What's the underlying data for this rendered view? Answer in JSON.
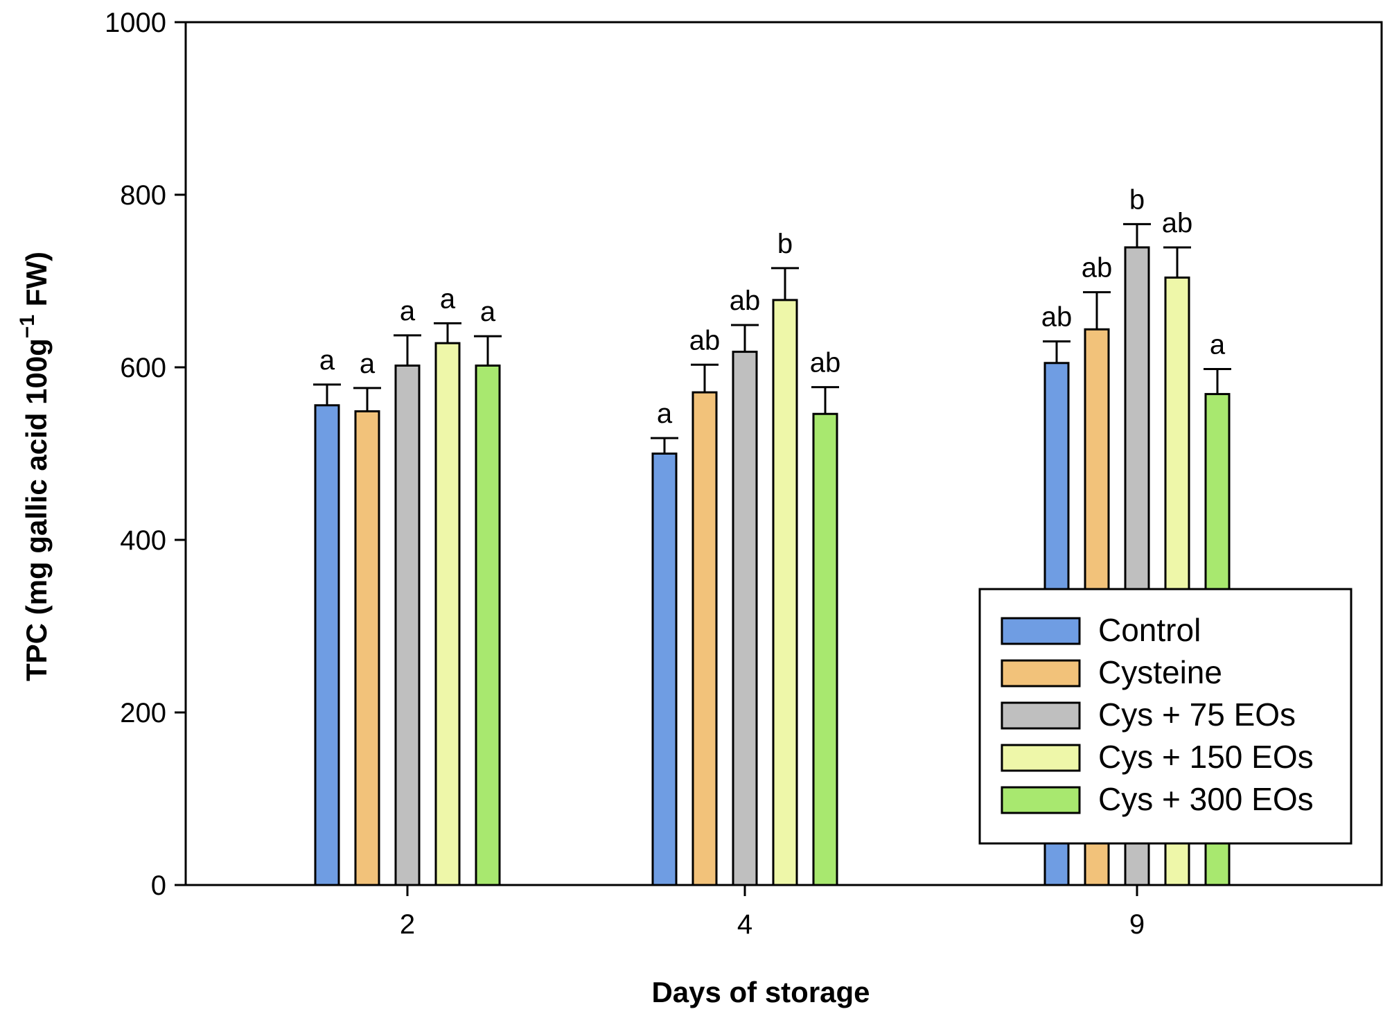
{
  "chart_data": {
    "type": "bar",
    "title": "",
    "xlabel": "Days of storage",
    "ylabel": {
      "base": "TPC (mg gallic acid 100g",
      "superscript": "−1",
      "suffix": " FW)"
    },
    "ylim": [
      0,
      1000
    ],
    "yticks": [
      0,
      200,
      400,
      600,
      800,
      1000
    ],
    "categories": [
      "2",
      "4",
      "9"
    ],
    "legend_position": "bottom-right",
    "series": [
      {
        "name": "Control",
        "color": "#6f9de3",
        "values": [
          556,
          500,
          605
        ],
        "errors": [
          24,
          18,
          25
        ],
        "labels": [
          "a",
          "a",
          "ab"
        ]
      },
      {
        "name": "Cysteine",
        "color": "#f2c27a",
        "values": [
          549,
          571,
          644
        ],
        "errors": [
          27,
          32,
          43
        ],
        "labels": [
          "a",
          "ab",
          "ab"
        ]
      },
      {
        "name": "Cys + 75 EOs",
        "color": "#bfbfbf",
        "values": [
          602,
          618,
          739
        ],
        "errors": [
          35,
          31,
          27
        ],
        "labels": [
          "a",
          "ab",
          "b"
        ]
      },
      {
        "name": "Cys + 150 EOs",
        "color": "#eef7a9",
        "values": [
          628,
          678,
          704
        ],
        "errors": [
          23,
          37,
          35
        ],
        "labels": [
          "a",
          "b",
          "ab"
        ]
      },
      {
        "name": "Cys + 300 EOs",
        "color": "#a8e86f",
        "values": [
          602,
          546,
          569
        ],
        "errors": [
          34,
          31,
          29
        ],
        "labels": [
          "a",
          "ab",
          "a"
        ]
      }
    ]
  }
}
